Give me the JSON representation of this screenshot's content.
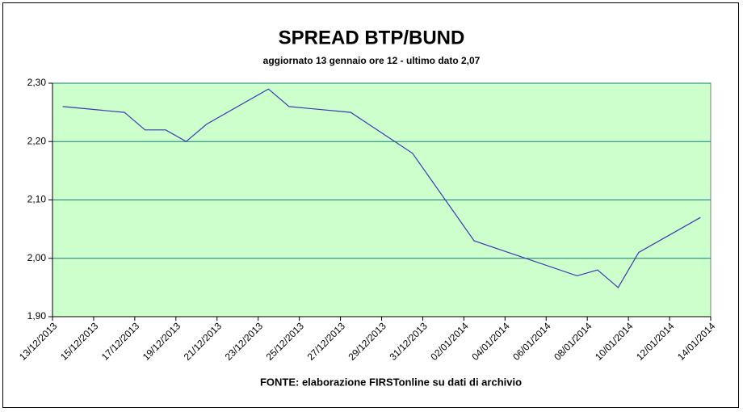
{
  "chart_data": {
    "type": "line",
    "title": "SPREAD BTP/BUND",
    "subtitle": "aggiornato 13 gennaio ore 12 - ultimo dato 2,07",
    "source": "FONTE: elaborazione FIRSTonline su dati di archivio",
    "x": [
      "13/12/2013",
      "16/12/2013",
      "17/12/2013",
      "18/12/2013",
      "19/12/2013",
      "20/12/2013",
      "23/12/2013",
      "24/12/2013",
      "27/12/2013",
      "30/12/2013",
      "02/01/2014",
      "07/01/2014",
      "08/01/2014",
      "09/01/2014",
      "10/01/2014",
      "13/01/2014"
    ],
    "values": [
      2.26,
      2.25,
      2.22,
      2.22,
      2.2,
      2.23,
      2.29,
      2.26,
      2.25,
      2.18,
      2.03,
      1.97,
      1.98,
      1.95,
      2.01,
      2.07
    ],
    "color": "#3a3ab0",
    "xlim": [
      "13/12/2013",
      "14/01/2014"
    ],
    "xticks": [
      "13/12/2013",
      "15/12/2013",
      "17/12/2013",
      "19/12/2013",
      "21/12/2013",
      "23/12/2013",
      "25/12/2013",
      "27/12/2013",
      "29/12/2013",
      "31/12/2013",
      "02/01/2014",
      "04/01/2014",
      "06/01/2014",
      "08/01/2014",
      "10/01/2014",
      "12/01/2014",
      "14/01/2014"
    ],
    "ylim": [
      1.9,
      2.3
    ],
    "yticks": [
      {
        "value": 1.9,
        "label": "1,90"
      },
      {
        "value": 2.0,
        "label": "2,00"
      },
      {
        "value": 2.1,
        "label": "2,10"
      },
      {
        "value": 2.2,
        "label": "2,20"
      },
      {
        "value": 2.3,
        "label": "2,30"
      }
    ],
    "grid": true,
    "plot_background": "#ccffcc"
  }
}
